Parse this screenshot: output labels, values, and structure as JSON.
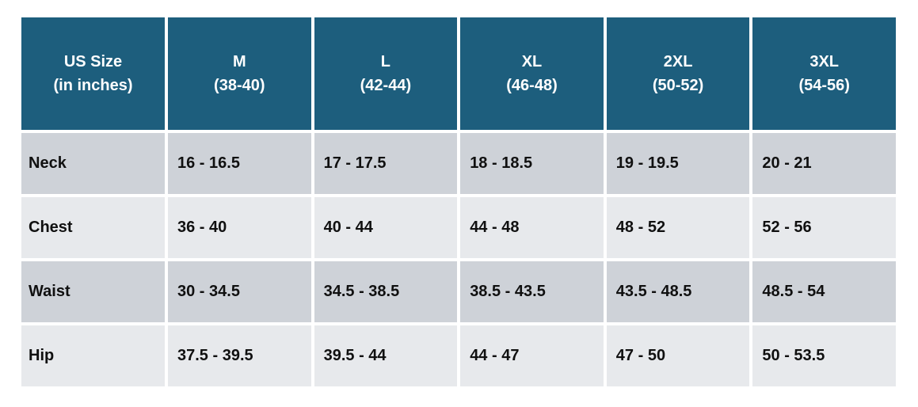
{
  "colors": {
    "header_bg": "#1d5e7d",
    "header_text": "#ffffff",
    "row_dark_bg": "#ced2d8",
    "row_light_bg": "#e7e9ec",
    "body_text": "#101010"
  },
  "header_display": [
    {
      "line1": "US Size",
      "line2": "(in inches)"
    },
    {
      "line1": "M",
      "line2": "(38-40)"
    },
    {
      "line1": "L",
      "line2": "(42-44)"
    },
    {
      "line1": "XL",
      "line2": "(46-48)"
    },
    {
      "line1": "2XL",
      "line2": "(50-52)"
    },
    {
      "line1": "3XL",
      "line2": "(54-56)"
    }
  ],
  "chart_data": {
    "type": "table",
    "title": "",
    "columns": [
      "US Size (in inches)",
      "M (38-40)",
      "L (42-44)",
      "XL (46-48)",
      "2XL (50-52)",
      "3XL (54-56)"
    ],
    "rows": [
      [
        "Neck",
        "16 - 16.5",
        "17 - 17.5",
        "18 - 18.5",
        "19 - 19.5",
        "20 - 21"
      ],
      [
        "Chest",
        "36 - 40",
        "40 - 44",
        "44 - 48",
        "48 - 52",
        "52 - 56"
      ],
      [
        "Waist",
        "30 - 34.5",
        "34.5 - 38.5",
        "38.5 - 43.5",
        "43.5 - 48.5",
        "48.5 - 54"
      ],
      [
        "Hip",
        "37.5 - 39.5",
        "39.5 - 44",
        "44 - 47",
        "47 - 50",
        "50 - 53.5"
      ]
    ],
    "layout": {
      "header_row_shaded": true,
      "body_rows_alternating": [
        "dark",
        "light",
        "dark",
        "light"
      ],
      "units": "inches"
    }
  }
}
